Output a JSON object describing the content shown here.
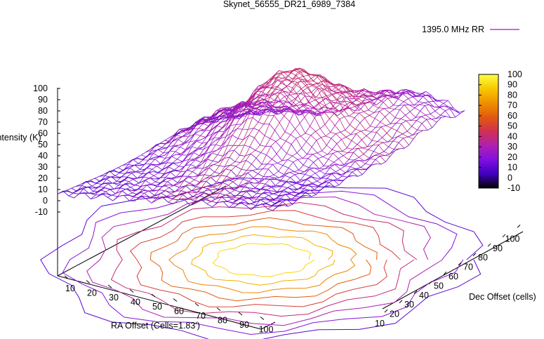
{
  "chart_data": {
    "type": "surface3d",
    "title": "Skynet_56555_DR21_6989_7384",
    "xlabel": "RA Offset (Cells=1.83')",
    "ylabel": "Dec Offset (cells)",
    "zlabel": "Intensity (K)",
    "x_ticks": [
      "10",
      "20",
      "30",
      "40",
      "50",
      "60",
      "70",
      "80",
      "90",
      "100"
    ],
    "y_ticks": [
      "10",
      "20",
      "30",
      "40",
      "50",
      "60",
      "70",
      "80",
      "90",
      "100"
    ],
    "z_ticks": [
      "-10",
      "0",
      "10",
      "20",
      "30",
      "40",
      "50",
      "60",
      "70",
      "80",
      "90",
      "100"
    ],
    "xlim": [
      3,
      100
    ],
    "ylim": [
      3,
      100
    ],
    "zlim": [
      -10,
      100
    ],
    "colorbar": {
      "range": [
        -10,
        100
      ],
      "ticks": [
        "100",
        "90",
        "80",
        "70",
        "60",
        "50",
        "40",
        "30",
        "20",
        "10",
        "0",
        "-10"
      ],
      "palette": [
        "#000000",
        "#4000c0",
        "#8010e0",
        "#b020b0",
        "#d03050",
        "#e05a10",
        "#f09000",
        "#f8c800",
        "#ffff40"
      ]
    },
    "legend": {
      "label": "1395.0 MHz RR",
      "position": "top-right"
    },
    "contour_levels": [
      10,
      20,
      30,
      40,
      50,
      60,
      70,
      80,
      90
    ],
    "peak": {
      "x": 53,
      "y": 60,
      "z": 93
    }
  }
}
